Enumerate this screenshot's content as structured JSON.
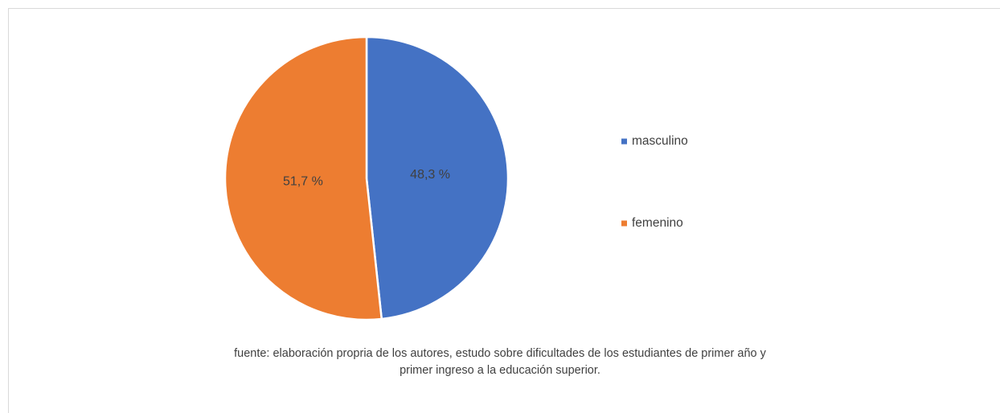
{
  "chart_data": {
    "type": "pie",
    "categories": [
      "masculino",
      "femenino"
    ],
    "values": [
      48.3,
      51.7
    ],
    "value_labels": [
      "48,3 %",
      "51,7 %"
    ],
    "colors": [
      "#4472c4",
      "#ed7d31"
    ],
    "legend": "right",
    "annotations": [
      "fuente: elaboración propria de los autores, estudo sobre dificultades de los estudiantes de primer año y",
      "primer ingreso a la educación superior."
    ]
  }
}
